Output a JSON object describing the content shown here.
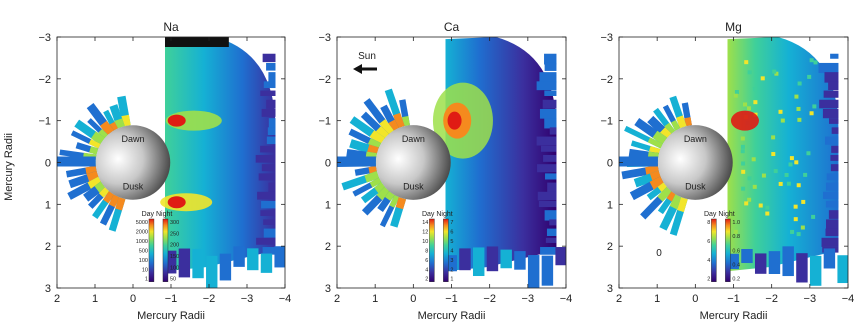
{
  "figure": {
    "ylabel": "Mercury Radii",
    "panels": [
      {
        "title": "Na",
        "xlabel": "Mercury Radii",
        "x_ticks": [
          "2",
          "1",
          "0",
          "−1",
          "−2",
          "−3",
          "−4"
        ],
        "y_ticks": [
          "−3",
          "−2",
          "−1",
          "0",
          "1",
          "2",
          "3"
        ],
        "planet_labels": [
          "Dawn",
          "Dusk"
        ],
        "colorbar": {
          "header": "Day Night",
          "day_ticks": [
            "5000",
            "2000",
            "1000",
            "500",
            "100",
            "10",
            "1"
          ],
          "night_ticks": [
            "300",
            "250",
            "200",
            "150",
            "100",
            "50"
          ]
        }
      },
      {
        "title": "Ca",
        "xlabel": "Mercury Radii",
        "x_ticks": [
          "2",
          "1",
          "0",
          "−1",
          "−2",
          "−3",
          "−4"
        ],
        "y_ticks": [
          "−3",
          "−2",
          "−1",
          "0",
          "1",
          "2",
          "3"
        ],
        "planet_labels": [
          "Dawn",
          "Dusk"
        ],
        "annotation": "Sun",
        "colorbar": {
          "header": "Day Night",
          "day_ticks": [
            "14",
            "12",
            "10",
            "8",
            "6",
            "4",
            "2"
          ],
          "night_ticks": [
            "7",
            "6",
            "5",
            "4",
            "3",
            "2",
            "1"
          ]
        }
      },
      {
        "title": "Mg",
        "xlabel": "Mercury Radii",
        "x_ticks": [
          "2",
          "1",
          "0",
          "−1",
          "−2",
          "−3",
          "−4"
        ],
        "y_ticks": [
          "−3",
          "−2",
          "−1",
          "0",
          "1",
          "2",
          "3"
        ],
        "planet_labels": [
          "Dawn",
          "Dusk"
        ],
        "extra_text": "0",
        "colorbar": {
          "header": "Day Night",
          "day_ticks": [
            "8",
            "6",
            "4",
            "2"
          ],
          "night_ticks": [
            "1.0",
            "0.8",
            "0.6",
            "0.4",
            "0.2"
          ]
        }
      }
    ]
  },
  "chart_data": [
    {
      "type": "heatmap",
      "title": "Na",
      "xlabel": "Mercury Radii",
      "ylabel": "Mercury Radii",
      "xlim": [
        2,
        -4
      ],
      "ylim": [
        -3,
        3
      ],
      "colorbar_day_ticks": [
        5000,
        2000,
        1000,
        500,
        100,
        10,
        1
      ],
      "colorbar_night_ticks": [
        300,
        250,
        200,
        150,
        100,
        50
      ]
    },
    {
      "type": "heatmap",
      "title": "Ca",
      "xlabel": "Mercury Radii",
      "ylabel": "",
      "xlim": [
        2,
        -4
      ],
      "ylim": [
        -3,
        3
      ],
      "colorbar_day_ticks": [
        14,
        12,
        10,
        8,
        6,
        4,
        2
      ],
      "colorbar_night_ticks": [
        7,
        6,
        5,
        4,
        3,
        2,
        1
      ]
    },
    {
      "type": "heatmap",
      "title": "Mg",
      "xlabel": "Mercury Radii",
      "ylabel": "",
      "xlim": [
        2,
        -4
      ],
      "ylim": [
        -3,
        3
      ],
      "colorbar_day_ticks": [
        8,
        6,
        4,
        2
      ],
      "colorbar_night_ticks": [
        1.0,
        0.8,
        0.6,
        0.4,
        0.2
      ]
    }
  ],
  "colors": {
    "colormap": [
      "#30006e",
      "#3b2f9e",
      "#1f6fd0",
      "#15b1d4",
      "#3fd09a",
      "#9ee04a",
      "#f2e52a",
      "#f58a1e",
      "#e01b14"
    ]
  }
}
